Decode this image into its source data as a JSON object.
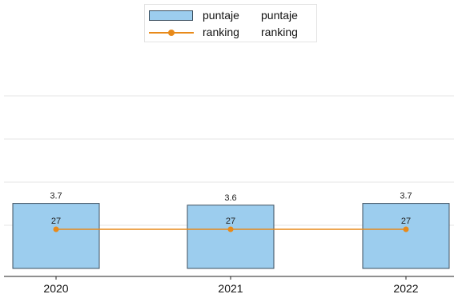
{
  "chart_data": {
    "type": "bar",
    "categories": [
      "2020",
      "2021",
      "2022"
    ],
    "series": [
      {
        "name": "puntaje",
        "type": "bar",
        "values": [
          3.7,
          3.6,
          3.7
        ],
        "labels": [
          "3.7",
          "3.6",
          "3.7"
        ],
        "color": "#9ccdee",
        "edge_color": "#3c4f5f"
      },
      {
        "name": "ranking",
        "type": "line",
        "values": [
          27,
          27,
          27
        ],
        "labels": [
          "27",
          "27",
          "27"
        ],
        "color": "#e88a1a"
      }
    ],
    "legend": {
      "position": "top-center",
      "entries": [
        {
          "marker": "bar",
          "label": "puntaje",
          "label2": "puntaje"
        },
        {
          "marker": "line",
          "label": "ranking",
          "label2": "ranking"
        }
      ]
    },
    "grid": true,
    "gridline_color": "#e6e6e6",
    "baseline_color": "#222222",
    "ylim": [
      0,
      10
    ]
  }
}
